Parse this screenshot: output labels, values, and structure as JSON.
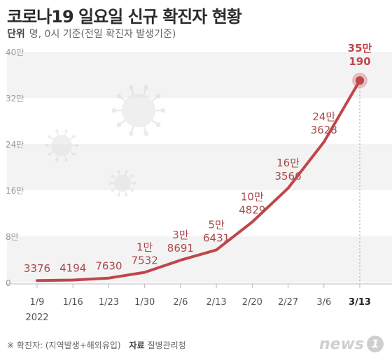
{
  "header": {
    "title": "코로나19 일요일 신규 확진자 현황",
    "unit_label": "단위",
    "unit_text": "명, 0시 기준(전일 확진자 발생기준)"
  },
  "footer": {
    "note": "※ 확진자: (지역발생+해외유입)",
    "source_label": "자료",
    "source": "질병관리청"
  },
  "logo": {
    "text": "news",
    "badge": "1"
  },
  "colors": {
    "line": "#c0464a",
    "label": "#a84a4e",
    "highlight": "#c0464a",
    "grid_band": "#f3f3f3",
    "axis": "#b8b8b8"
  },
  "chart_data": {
    "type": "line",
    "title": "코로나19 일요일 신규 확진자 현황",
    "xlabel": "",
    "ylabel": "",
    "categories": [
      "1/9",
      "1/16",
      "1/23",
      "1/30",
      "2/6",
      "2/13",
      "2/20",
      "2/27",
      "3/6",
      "3/13"
    ],
    "year_label": "2022",
    "values": [
      3376,
      4194,
      7630,
      17532,
      38691,
      56431,
      104829,
      163566,
      243628,
      350190
    ],
    "point_labels": [
      [
        "3376"
      ],
      [
        "4194"
      ],
      [
        "7630"
      ],
      [
        "1만",
        "7532"
      ],
      [
        "3만",
        "8691"
      ],
      [
        "5만",
        "6431"
      ],
      [
        "10만",
        "4829"
      ],
      [
        "16만",
        "3566"
      ],
      [
        "24만",
        "3628"
      ],
      [
        "35만",
        "190"
      ]
    ],
    "ylim": [
      0,
      400000
    ],
    "yticks": [
      0,
      80000,
      160000,
      240000,
      320000,
      400000
    ],
    "ytick_labels": [
      "0",
      "8만",
      "16만",
      "24만",
      "32만",
      "40만"
    ],
    "grid": true,
    "highlight_last": true
  }
}
